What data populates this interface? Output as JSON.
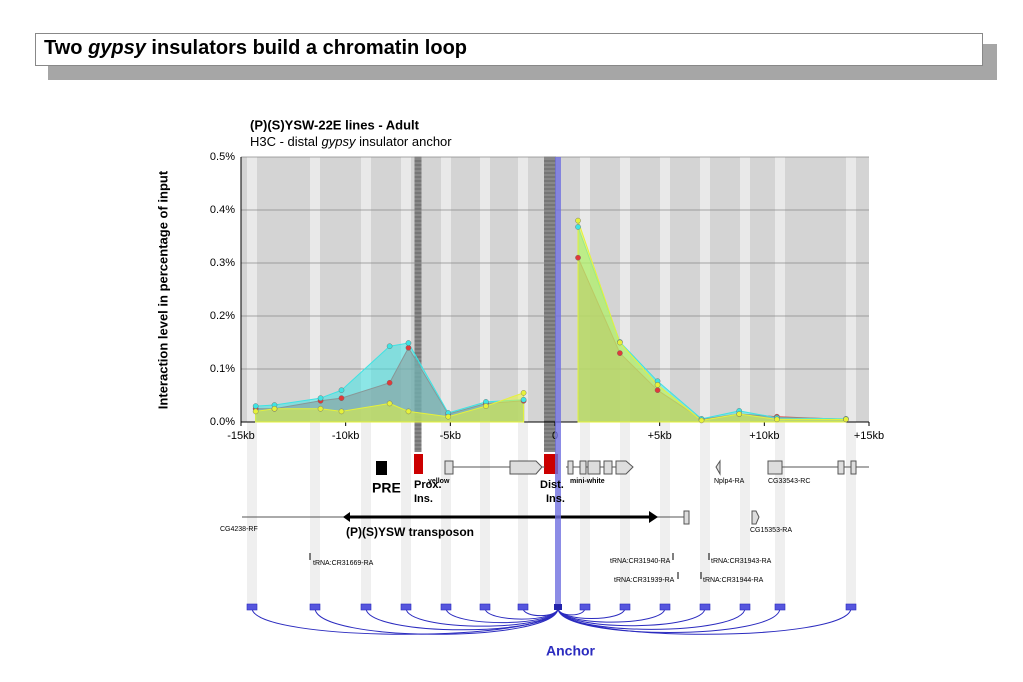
{
  "slide": {
    "title": [
      "Two ",
      "gypsy",
      " insulators build a chromatin loop"
    ]
  },
  "chart_data": {
    "type": "area",
    "title": "(P)(S)YSW-22E lines - Adult",
    "subtitle": [
      "H3C - distal ",
      "gypsy",
      " insulator anchor"
    ],
    "y_label": "Interaction level in percentage of input",
    "x": [
      -14.3,
      -13.4,
      -11.2,
      -10.2,
      -7.9,
      -7.0,
      -5.1,
      -3.3,
      -1.5,
      0,
      1.1,
      3.1,
      4.9,
      7.0,
      8.8,
      10.6,
      13.9
    ],
    "series": [
      {
        "color": "#e03a3a",
        "values": [
          0.025,
          0.025,
          0.04,
          0.045,
          0.074,
          0.14,
          0.015,
          0.035,
          0.04,
          null,
          0.31,
          0.13,
          0.06,
          0.005,
          0.015,
          0.01,
          0.005
        ]
      },
      {
        "color": "#3fe3e3",
        "values": [
          0.03,
          0.032,
          0.045,
          0.06,
          0.143,
          0.149,
          0.017,
          0.038,
          0.042,
          null,
          0.368,
          0.151,
          0.077,
          0.006,
          0.021,
          0.008,
          0.006
        ]
      },
      {
        "color": "#e6f23a",
        "values": [
          0.02,
          0.025,
          0.025,
          0.02,
          0.035,
          0.02,
          0.01,
          0.03,
          0.055,
          null,
          0.38,
          0.15,
          0.07,
          0.003,
          0.015,
          0.005,
          0.005
        ]
      }
    ],
    "xlim": [
      -15,
      15
    ],
    "xticks": [
      {
        "value": -15,
        "label": "-15kb"
      },
      {
        "value": -10,
        "label": "-10kb"
      },
      {
        "value": -5,
        "label": "-5kb"
      },
      0,
      {
        "value": 5,
        "label": "+5kb"
      },
      {
        "value": 10,
        "label": "+10kb"
      },
      {
        "value": 15,
        "label": "+15kb"
      }
    ],
    "ylim": [
      0,
      0.5
    ],
    "yticks": [
      {
        "value": 0,
        "label": "0.0%"
      },
      {
        "value": 0.1,
        "label": "0.1%"
      },
      {
        "value": 0.2,
        "label": "0.2%"
      },
      {
        "value": 0.3,
        "label": "0.3%"
      },
      {
        "value": 0.4,
        "label": "0.4%"
      },
      {
        "value": 0.5,
        "label": "0.5%"
      }
    ],
    "grid": true
  },
  "track": {
    "labels": [
      "PRE",
      "Prox.",
      "Ins.",
      "yellow",
      "Dist.",
      "Ins.",
      "mini-white",
      "Nplp4-RA",
      "CG33543-RC",
      "CG4238-RF",
      "(P)(S)YSW transposon",
      "CG15353-RA",
      "tRNA:CR31669-RA",
      "tRNA:CR31940-RA",
      "tRNA:CR31939-RA",
      "tRNA:CR31943-RA",
      "tRNA:CR31944-RA",
      "Anchor"
    ]
  }
}
